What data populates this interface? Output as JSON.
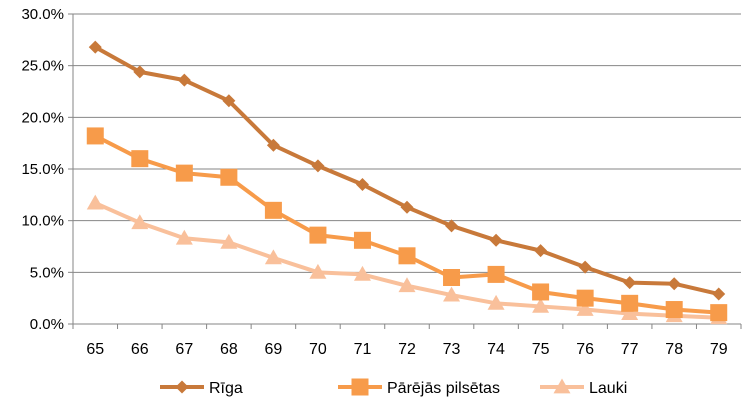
{
  "chart_data": {
    "type": "line",
    "title": "",
    "xlabel": "",
    "ylabel": "",
    "categories": [
      "65",
      "66",
      "67",
      "68",
      "69",
      "70",
      "71",
      "72",
      "73",
      "74",
      "75",
      "76",
      "77",
      "78",
      "79"
    ],
    "y_tick_labels": [
      "0.0%",
      "5.0%",
      "10.0%",
      "15.0%",
      "20.0%",
      "25.0%",
      "30.0%"
    ],
    "ylim": [
      0,
      30
    ],
    "y_unit": "%",
    "grid": "horizontal",
    "legend_position": "bottom",
    "series": [
      {
        "name": "Rīga",
        "marker": "diamond",
        "color": "#C8793A",
        "values": [
          26.8,
          24.4,
          23.6,
          21.6,
          17.3,
          15.3,
          13.5,
          11.3,
          9.5,
          8.1,
          7.1,
          5.5,
          4.0,
          3.9,
          2.9
        ]
      },
      {
        "name": "Pārējās pilsētas",
        "marker": "square",
        "color": "#F79B4A",
        "values": [
          18.2,
          16.0,
          14.6,
          14.2,
          11.0,
          8.6,
          8.1,
          6.6,
          4.5,
          4.8,
          3.1,
          2.5,
          2.0,
          1.4,
          1.1
        ]
      },
      {
        "name": "Lauki",
        "marker": "triangle",
        "color": "#F9C09B",
        "values": [
          11.7,
          9.8,
          8.3,
          7.9,
          6.4,
          5.0,
          4.8,
          3.7,
          2.8,
          2.0,
          1.7,
          1.4,
          1.0,
          0.8,
          0.6
        ]
      }
    ]
  }
}
